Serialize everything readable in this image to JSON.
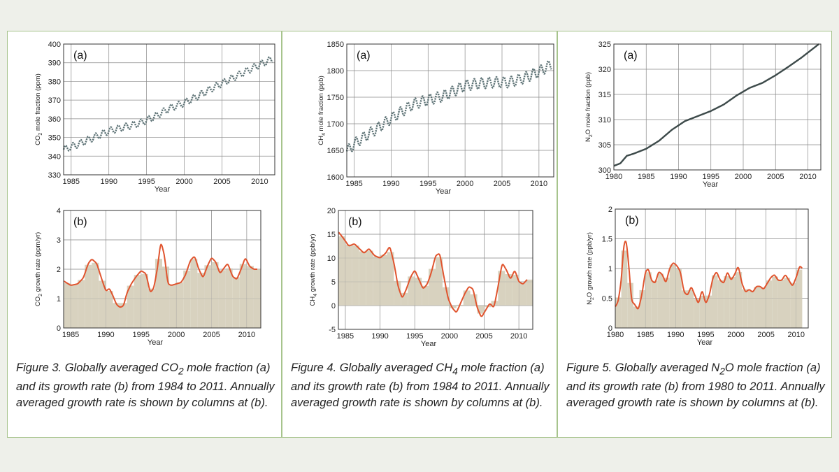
{
  "page": {
    "background": "#eef0ea",
    "panel_border": "#a7c48d",
    "co2_line": "#5f7477",
    "n2o_line": "#3d4a4a",
    "growth_line": "#e0542e",
    "growth_fill": "#d8d2bf"
  },
  "captions": [
    {
      "lead": "Figure 3. Globally averaged CO",
      "sub": "2",
      "tail": " mole fraction (a) and its growth rate (b) from 1984 to 2011. Annually averaged growth rate is shown by columns at (b)."
    },
    {
      "lead": "Figure 4. Globally averaged CH",
      "sub": "4",
      "tail": " mole fraction (a) and its growth rate (b) from 1984 to 2011. Annually averaged growth rate is shown by columns at (b)."
    },
    {
      "lead": "Figure 5. Globally averaged N",
      "sub": "2",
      "tail": "O mole fraction (a) and its growth rate (b) from 1980 to 2011. Annually averaged growth rate is shown by columns at (b)."
    }
  ],
  "chart_data": [
    {
      "id": "co2a",
      "type": "line",
      "panel_label": "(a)",
      "ylabel_main": "CO",
      "ylabel_sub": "2",
      "ylabel_tail": " mole fraction (ppm)",
      "xlabel": "Year",
      "xlim": [
        1984,
        2012
      ],
      "ylim": [
        330,
        400
      ],
      "xticks": [
        1985,
        1990,
        1995,
        2000,
        2005,
        2010
      ],
      "yticks": [
        330,
        340,
        350,
        360,
        370,
        380,
        390,
        400
      ],
      "grid": true,
      "seasonal_amplitude_ppm": 1.8,
      "series": [
        {
          "x": [
            1984,
            1986,
            1988,
            1990,
            1992,
            1994,
            1996,
            1998,
            2000,
            2002,
            2004,
            2006,
            2008,
            2010,
            2011.7
          ],
          "values": [
            343.5,
            346.5,
            350.0,
            353.5,
            355.5,
            357.5,
            361.0,
            365.5,
            368.5,
            372.5,
            377.0,
            381.0,
            385.0,
            389.0,
            392.0
          ]
        }
      ]
    },
    {
      "id": "co2b",
      "type": "area",
      "panel_label": "(b)",
      "ylabel_main": "CO",
      "ylabel_sub": "2",
      "ylabel_tail": " growth rate (ppm/yr)",
      "xlabel": "Year",
      "xlim": [
        1984,
        2012
      ],
      "ylim": [
        0,
        4
      ],
      "xticks": [
        1985,
        1990,
        1995,
        2000,
        2005,
        2010
      ],
      "yticks": [
        0,
        1,
        2,
        3,
        4
      ],
      "grid": true,
      "series": [
        {
          "x": [
            1984,
            1985,
            1986,
            1986.8,
            1987.5,
            1988,
            1988.7,
            1989.5,
            1990,
            1990.5,
            1991,
            1991.5,
            1992,
            1992.5,
            1993,
            1993.6,
            1994.3,
            1995,
            1995.7,
            1996.3,
            1996.8,
            1997.3,
            1997.8,
            1998.3,
            1998.8,
            1999.3,
            2000,
            2000.7,
            2001.3,
            2002,
            2002.6,
            2003.2,
            2003.8,
            2004.4,
            2005,
            2005.6,
            2006.2,
            2006.8,
            2007.3,
            2008,
            2008.6,
            2009.2,
            2009.8,
            2010.4,
            2011,
            2011.5
          ],
          "values": [
            1.6,
            1.45,
            1.5,
            1.7,
            2.2,
            2.35,
            2.2,
            1.6,
            1.25,
            1.35,
            1.1,
            0.8,
            0.7,
            0.75,
            1.2,
            1.5,
            1.75,
            1.95,
            1.85,
            1.2,
            1.35,
            2.0,
            2.95,
            2.5,
            1.5,
            1.45,
            1.5,
            1.55,
            1.8,
            2.3,
            2.45,
            2.0,
            1.7,
            2.1,
            2.4,
            2.25,
            1.85,
            2.05,
            2.2,
            1.75,
            1.65,
            2.0,
            2.4,
            2.1,
            2.0,
            2.0
          ]
        }
      ]
    },
    {
      "id": "ch4a",
      "type": "line",
      "panel_label": "(a)",
      "ylabel_main": "CH",
      "ylabel_sub": "4",
      "ylabel_tail": " mole fraction (ppb)",
      "xlabel": "Year",
      "xlim": [
        1984,
        2012
      ],
      "ylim": [
        1600,
        1850
      ],
      "xticks": [
        1985,
        1990,
        1995,
        2000,
        2005,
        2010
      ],
      "yticks": [
        1600,
        1650,
        1700,
        1750,
        1800,
        1850
      ],
      "grid": true,
      "seasonal_amplitude_ppb": 10,
      "series": [
        {
          "x": [
            1984,
            1985,
            1986,
            1988,
            1990,
            1992,
            1993,
            1995,
            1997,
            1999,
            2000,
            2002,
            2004,
            2006,
            2008,
            2010,
            2011.7
          ],
          "values": [
            1648,
            1662,
            1672,
            1690,
            1710,
            1728,
            1737,
            1745,
            1752,
            1765,
            1772,
            1776,
            1778,
            1778,
            1786,
            1798,
            1812
          ]
        }
      ]
    },
    {
      "id": "ch4b",
      "type": "area",
      "panel_label": "(b)",
      "ylabel_main": "CH",
      "ylabel_sub": "4",
      "ylabel_tail": " growth rate (ppb/yr)",
      "xlabel": "Year",
      "xlim": [
        1984,
        2012
      ],
      "ylim": [
        -5,
        20
      ],
      "xticks": [
        1985,
        1990,
        1995,
        2000,
        2005,
        2010
      ],
      "yticks": [
        -5,
        0,
        5,
        10,
        15,
        20
      ],
      "grid": true,
      "series": [
        {
          "x": [
            1984,
            1984.8,
            1985.5,
            1986.3,
            1987,
            1987.7,
            1988.4,
            1989.2,
            1990,
            1990.8,
            1991.4,
            1992,
            1992.6,
            1993.2,
            1993.8,
            1994.4,
            1995,
            1995.6,
            1996.2,
            1996.8,
            1997.4,
            1998,
            1998.6,
            1999.2,
            1999.8,
            2000.4,
            2001,
            2001.6,
            2002.2,
            2002.8,
            2003.4,
            2004,
            2004.6,
            2005.2,
            2005.8,
            2006.4,
            2007,
            2007.6,
            2008.2,
            2008.8,
            2009.4,
            2010,
            2010.6,
            2011.2
          ],
          "values": [
            15.5,
            14.0,
            12.5,
            13.0,
            12.0,
            11.0,
            12.0,
            10.5,
            10.0,
            11.0,
            12.5,
            9.0,
            4.0,
            1.5,
            3.5,
            6.0,
            7.5,
            5.5,
            3.5,
            4.5,
            7.0,
            10.5,
            11.0,
            6.0,
            1.5,
            -0.5,
            -1.5,
            0.5,
            2.5,
            4.0,
            3.5,
            -0.5,
            -2.5,
            -1.0,
            0.5,
            -0.5,
            4.0,
            9.0,
            7.5,
            5.5,
            7.5,
            5.0,
            4.5,
            5.5
          ]
        }
      ]
    },
    {
      "id": "n2oa",
      "type": "line",
      "panel_label": "(a)",
      "ylabel_main": "N",
      "ylabel_sub": "2",
      "ylabel_tail": "O mole fraction (ppb)",
      "xlabel": "Year",
      "xlim": [
        1980,
        2012
      ],
      "ylim": [
        300,
        325
      ],
      "xticks": [
        1980,
        1985,
        1990,
        1995,
        2000,
        2005,
        2010
      ],
      "yticks": [
        300,
        305,
        310,
        315,
        320,
        325
      ],
      "grid": true,
      "series": [
        {
          "x": [
            1980,
            1981,
            1982,
            1983,
            1984,
            1985,
            1987,
            1989,
            1991,
            1993,
            1995,
            1997,
            1999,
            2001,
            2003,
            2005,
            2007,
            2009,
            2011.7
          ],
          "values": [
            300.8,
            301.3,
            302.8,
            303.2,
            303.7,
            304.2,
            305.8,
            308.0,
            309.7,
            310.7,
            311.7,
            313.0,
            314.8,
            316.3,
            317.3,
            318.8,
            320.5,
            322.3,
            325.0
          ]
        }
      ]
    },
    {
      "id": "n2ob",
      "type": "area",
      "panel_label": "(b)",
      "ylabel_main": "N",
      "ylabel_sub": "2",
      "ylabel_tail": "O growth rate (ppb/yr)",
      "xlabel": "Year",
      "xlim": [
        1980,
        2012
      ],
      "ylim": [
        0,
        2
      ],
      "xticks": [
        1980,
        1985,
        1990,
        1995,
        2000,
        2005,
        2010
      ],
      "yticks": [
        0,
        0.5,
        1,
        1.5,
        2
      ],
      "ytick_labels": [
        "0",
        "0.5",
        "1",
        "1.5",
        "2"
      ],
      "grid": true,
      "series": [
        {
          "x": [
            1980,
            1980.5,
            1981,
            1981.4,
            1981.8,
            1982.2,
            1982.7,
            1983.2,
            1983.8,
            1984.4,
            1985,
            1985.5,
            1986,
            1986.6,
            1987.2,
            1987.8,
            1988.4,
            1989,
            1989.6,
            1990.2,
            1990.8,
            1991.4,
            1992,
            1992.6,
            1993.2,
            1993.8,
            1994.4,
            1995,
            1995.6,
            1996.2,
            1996.8,
            1997.4,
            1998,
            1998.6,
            1999.2,
            1999.8,
            2000.4,
            2001,
            2001.6,
            2002.2,
            2002.8,
            2003.4,
            2004,
            2004.6,
            2005.2,
            2005.8,
            2006.4,
            2007,
            2007.6,
            2008.2,
            2008.8,
            2009.4,
            2010,
            2010.6,
            2011
          ],
          "values": [
            0.35,
            0.45,
            0.8,
            1.4,
            1.5,
            1.1,
            0.45,
            0.4,
            0.3,
            0.55,
            0.95,
            1.0,
            0.8,
            0.75,
            0.95,
            0.9,
            0.75,
            1.0,
            1.1,
            1.05,
            0.95,
            0.6,
            0.55,
            0.7,
            0.55,
            0.4,
            0.65,
            0.4,
            0.55,
            0.85,
            0.95,
            0.8,
            0.75,
            0.95,
            0.8,
            0.9,
            1.05,
            0.75,
            0.6,
            0.65,
            0.6,
            0.7,
            0.7,
            0.65,
            0.75,
            0.85,
            0.9,
            0.8,
            0.8,
            0.9,
            0.8,
            0.7,
            0.85,
            1.05,
            1.0
          ]
        }
      ]
    }
  ]
}
